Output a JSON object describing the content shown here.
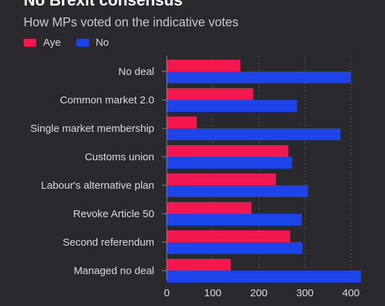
{
  "header": {
    "title": "No Brexit consensus",
    "subtitle": "How MPs voted on the indicative votes"
  },
  "colors": {
    "aye": "#f2174f",
    "no": "#1d44e8",
    "gridline": "#55555c",
    "axis": "#8a8a90"
  },
  "chart_data": {
    "type": "bar",
    "orientation": "horizontal",
    "title": "No Brexit consensus",
    "subtitle": "How MPs voted on the indicative votes",
    "categories": [
      "No deal",
      "Common market 2.0",
      "Single market membership",
      "Customs union",
      "Labour's alternative plan",
      "Revoke Article 50",
      "Second referendum",
      "Managed no deal"
    ],
    "series": [
      {
        "name": "Aye",
        "values": [
          160,
          188,
          65,
          264,
          237,
          184,
          268,
          139
        ]
      },
      {
        "name": "No",
        "values": [
          400,
          283,
          377,
          272,
          307,
          293,
          295,
          422
        ]
      }
    ],
    "xticks": [
      0,
      100,
      200,
      300,
      400
    ],
    "xlim": [
      0,
      430
    ],
    "grid": true,
    "legend": "top-left"
  }
}
